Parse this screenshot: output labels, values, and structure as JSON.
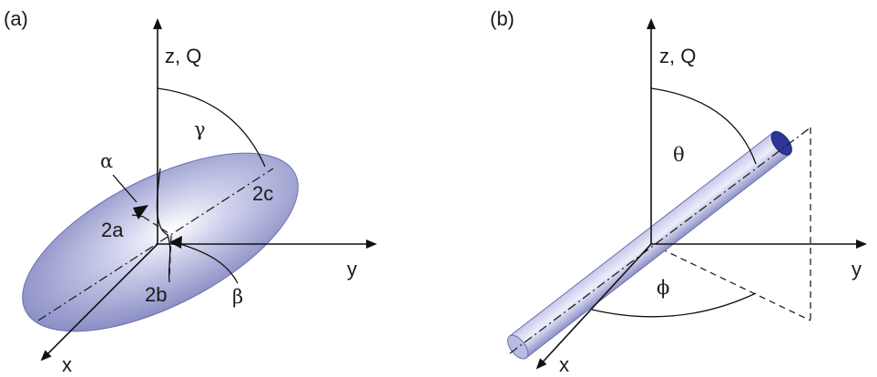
{
  "panel_a": {
    "tag": "(a)",
    "axis_z": "z, Q",
    "axis_y": "y",
    "axis_x": "x",
    "gamma": "γ",
    "alpha": "α",
    "beta": "β",
    "semi_a": "2a",
    "semi_b": "2b",
    "semi_c": "2c"
  },
  "panel_b": {
    "tag": "(b)",
    "axis_z": "z, Q",
    "axis_y": "y",
    "axis_x": "x",
    "theta": "θ",
    "phi": "ϕ"
  },
  "colors": {
    "body_fill": "#8f93c8",
    "body_edge": "#5a5ea0",
    "cap_fill": "#2e3596"
  }
}
